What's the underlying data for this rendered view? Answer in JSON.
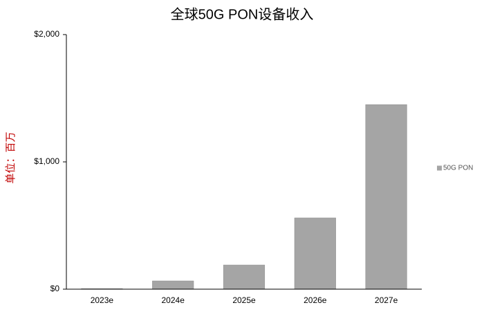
{
  "chart_data": {
    "type": "bar",
    "title": "全球50G PON设备收入",
    "y_label": "单位：百万",
    "categories": [
      "2023e",
      "2024e",
      "2025e",
      "2026e",
      "2027e"
    ],
    "series": [
      {
        "name": "50G PON",
        "color": "#a5a5a5",
        "values": [
          4,
          65,
          190,
          560,
          1450
        ]
      }
    ],
    "ylim": [
      0,
      2000
    ],
    "yticks": [
      {
        "value": 0,
        "label": "$0"
      },
      {
        "value": 1000,
        "label": "$1,000"
      },
      {
        "value": 2000,
        "label": "$2,000"
      }
    ],
    "grid": false,
    "legend": "right"
  }
}
